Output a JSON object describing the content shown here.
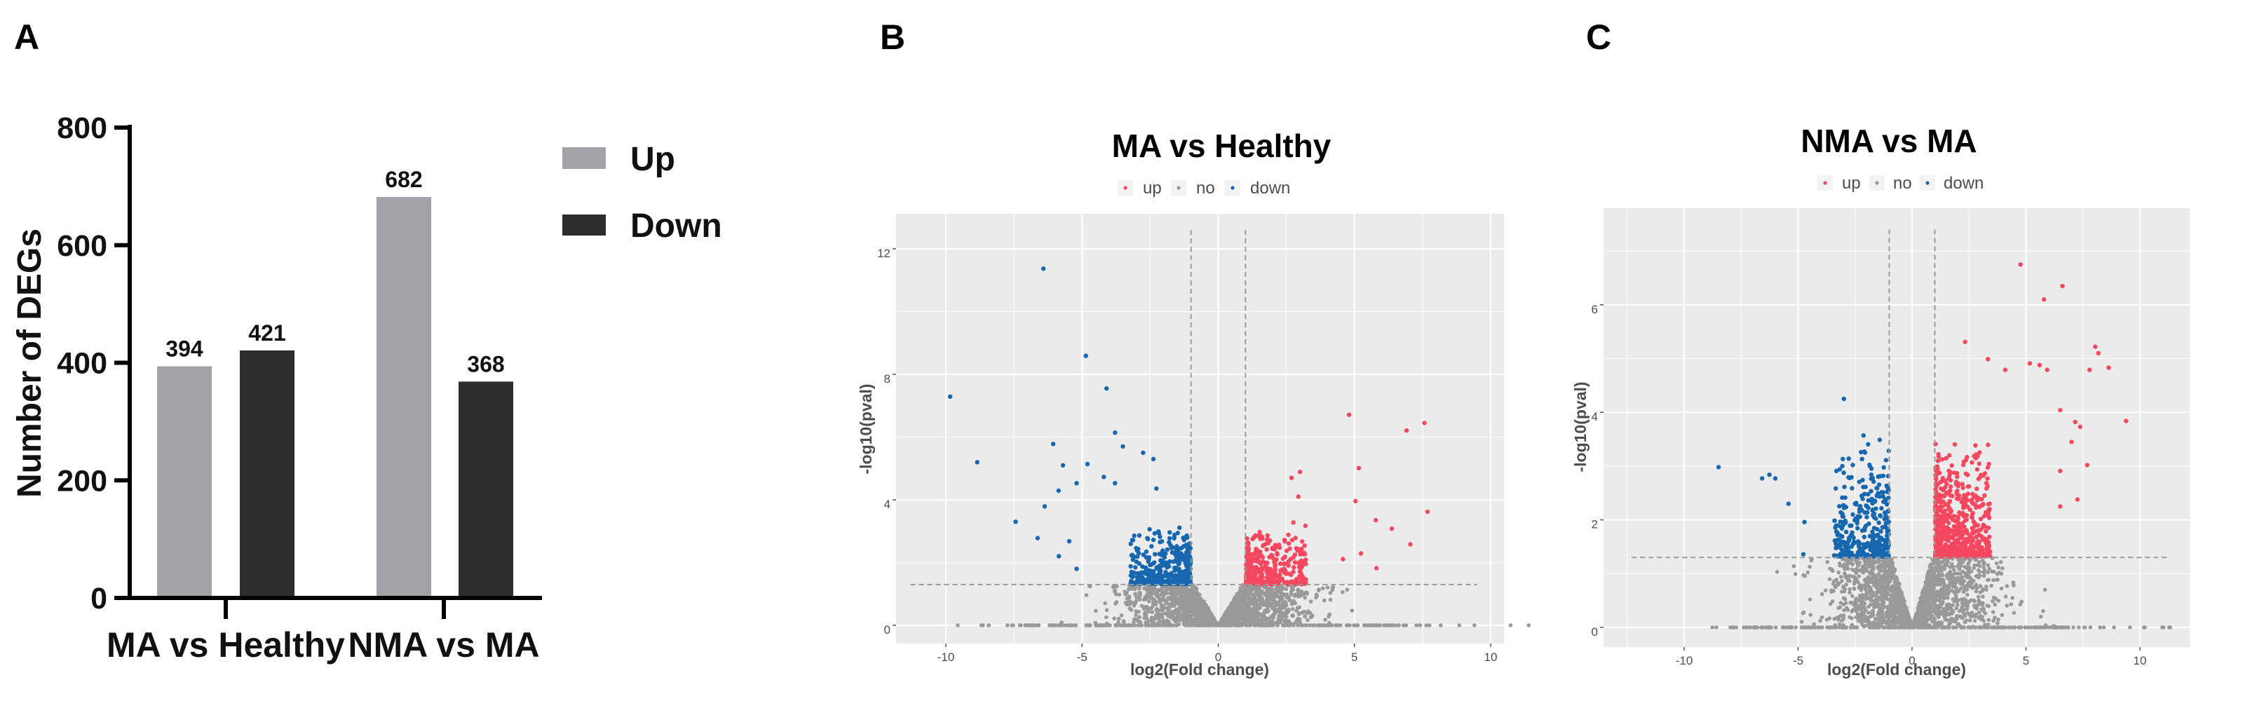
{
  "chart_data": [
    {
      "panel": "A",
      "type": "bar",
      "title": "",
      "xlabel": "",
      "ylabel": "Number of DEGs",
      "ylim": [
        0,
        800
      ],
      "yticks": [
        "0",
        "200",
        "400",
        "600",
        "800"
      ],
      "categories": [
        "MA vs Healthy",
        "NMA vs MA"
      ],
      "series": [
        {
          "name": "Up",
          "color": "#a3a3a7",
          "values": [
            394,
            682
          ]
        },
        {
          "name": "Down",
          "color": "#2d2d2d",
          "values": [
            421,
            368
          ]
        }
      ],
      "legend_position": "right"
    },
    {
      "panel": "B",
      "type": "scatter",
      "title": "MA vs Healthy",
      "xlabel": "log2(Fold change)",
      "ylabel": "-log10(pval)",
      "xticks": [
        "-10",
        "-5",
        "0",
        "5",
        "10"
      ],
      "yticks": [
        "0",
        "4",
        "8",
        "12"
      ],
      "legend": [
        {
          "label": "up",
          "color": "#f5475f"
        },
        {
          "label": "no",
          "color": "#999999"
        },
        {
          "label": "down",
          "color": "#1666b0"
        }
      ],
      "legend_position": "top",
      "thresholds": {
        "log2fc": 1,
        "neglog10p": 1.3
      },
      "counts": {
        "up": 394,
        "down": 421
      },
      "labeled_points": {
        "down": [
          [
            -6.42,
            11.37
          ],
          [
            -4.86,
            8.59
          ],
          [
            -4.1,
            7.55
          ],
          [
            -9.84,
            7.29
          ],
          [
            -3.79,
            6.14
          ],
          [
            -6.06,
            5.78
          ],
          [
            -3.5,
            5.7
          ],
          [
            -8.85,
            5.2
          ],
          [
            -2.76,
            5.5
          ],
          [
            -2.38,
            5.3
          ],
          [
            -4.8,
            5.14
          ],
          [
            -5.7,
            5.1
          ],
          [
            -4.2,
            4.73
          ],
          [
            -5.2,
            4.53
          ],
          [
            -2.27,
            4.36
          ],
          [
            -3.79,
            4.53
          ],
          [
            -5.86,
            4.29
          ],
          [
            -6.37,
            3.79
          ],
          [
            -7.44,
            3.3
          ],
          [
            -6.63,
            2.78
          ],
          [
            -5.47,
            2.68
          ],
          [
            -5.85,
            2.2
          ],
          [
            -5.2,
            1.8
          ]
        ],
        "up": [
          [
            4.8,
            6.71
          ],
          [
            7.57,
            6.45
          ],
          [
            6.91,
            6.21
          ],
          [
            5.16,
            5.01
          ],
          [
            3.0,
            4.89
          ],
          [
            2.69,
            4.7
          ],
          [
            2.94,
            4.1
          ],
          [
            5.04,
            3.96
          ],
          [
            7.68,
            3.62
          ],
          [
            5.78,
            3.35
          ],
          [
            6.37,
            3.08
          ],
          [
            7.05,
            2.58
          ],
          [
            5.81,
            1.82
          ],
          [
            5.24,
            2.29
          ],
          [
            4.58,
            2.11
          ]
        ]
      },
      "nonsig_points": 1800
    },
    {
      "panel": "C",
      "type": "scatter",
      "title": "NMA vs MA",
      "xlabel": "log2(Fold change)",
      "ylabel": "-log10(pval)",
      "xticks": [
        "-10",
        "-5",
        "0",
        "5",
        "10"
      ],
      "yticks": [
        "0",
        "2",
        "4",
        "6"
      ],
      "legend": [
        {
          "label": "up",
          "color": "#f5475f"
        },
        {
          "label": "no",
          "color": "#999999"
        },
        {
          "label": "down",
          "color": "#1666b0"
        }
      ],
      "legend_position": "top",
      "thresholds": {
        "log2fc": 1,
        "neglog10p": 1.3
      },
      "counts": {
        "up": 682,
        "down": 368
      },
      "labeled_points": {
        "down": [
          [
            -2.99,
            4.25
          ],
          [
            -8.49,
            2.98
          ],
          [
            -6.26,
            2.84
          ],
          [
            -6.58,
            2.77
          ],
          [
            -6.0,
            2.77
          ],
          [
            -2.13,
            3.57
          ],
          [
            -2.09,
            3.27
          ],
          [
            -2.78,
            3.14
          ],
          [
            -5.42,
            2.3
          ],
          [
            -4.72,
            1.96
          ],
          [
            -4.77,
            1.36
          ]
        ],
        "up": [
          [
            4.76,
            6.75
          ],
          [
            6.6,
            6.35
          ],
          [
            5.79,
            6.1
          ],
          [
            2.33,
            5.31
          ],
          [
            8.04,
            5.22
          ],
          [
            8.18,
            5.1
          ],
          [
            3.33,
            4.99
          ],
          [
            8.63,
            4.83
          ],
          [
            7.79,
            4.79
          ],
          [
            5.17,
            4.91
          ],
          [
            5.6,
            4.88
          ],
          [
            5.93,
            4.79
          ],
          [
            4.09,
            4.79
          ],
          [
            9.39,
            3.84
          ],
          [
            7.16,
            3.82
          ],
          [
            7.38,
            3.73
          ],
          [
            6.5,
            4.04
          ],
          [
            7.0,
            3.45
          ],
          [
            7.69,
            3.02
          ],
          [
            6.5,
            2.91
          ],
          [
            7.26,
            2.38
          ],
          [
            6.5,
            2.25
          ]
        ]
      },
      "nonsig_points": 1800
    }
  ],
  "labels": {
    "a": "A",
    "b": "B",
    "c": "C"
  }
}
